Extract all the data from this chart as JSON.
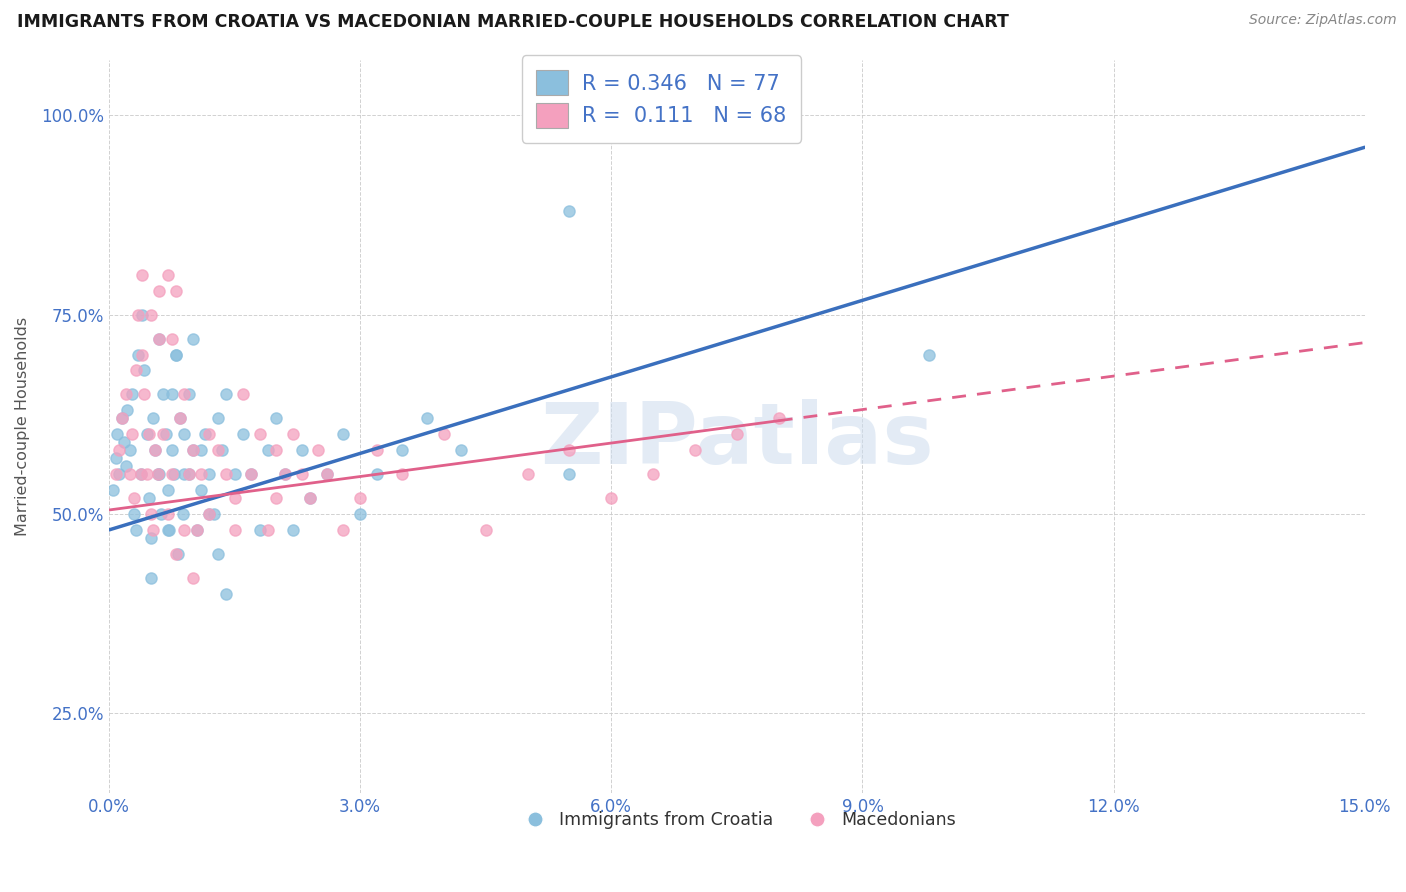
{
  "title": "IMMIGRANTS FROM CROATIA VS MACEDONIAN MARRIED-COUPLE HOUSEHOLDS CORRELATION CHART",
  "source": "Source: ZipAtlas.com",
  "ylabel": "Married-couple Households",
  "xlim": [
    0.0,
    15.0
  ],
  "ylim": [
    15.0,
    107.0
  ],
  "xticks": [
    0.0,
    3.0,
    6.0,
    9.0,
    12.0,
    15.0
  ],
  "yticks": [
    25.0,
    50.0,
    75.0,
    100.0
  ],
  "blue_scatter_color": "#8bbfdd",
  "pink_scatter_color": "#f4a0be",
  "blue_line_color": "#3a6fbd",
  "pink_line_color": "#e0608a",
  "R_blue": 0.346,
  "N_blue": 77,
  "R_pink": 0.111,
  "N_pink": 68,
  "legend_label_blue": "Immigrants from Croatia",
  "legend_label_pink": "Macedonians",
  "watermark": "ZIPatlas",
  "tick_color": "#4472c6",
  "label_color": "#555555",
  "grid_color": "#cccccc",
  "bg_color": "#ffffff",
  "title_color": "#1a1a1a",
  "source_color": "#888888",
  "blue_line_intercept": 48.0,
  "blue_line_slope": 3.2,
  "pink_line_intercept": 50.5,
  "pink_line_slope": 1.4,
  "pink_data_max_x": 8.0,
  "blue_scatter_x": [
    0.05,
    0.08,
    0.1,
    0.12,
    0.15,
    0.18,
    0.2,
    0.22,
    0.25,
    0.28,
    0.3,
    0.32,
    0.35,
    0.38,
    0.4,
    0.42,
    0.45,
    0.48,
    0.5,
    0.52,
    0.55,
    0.58,
    0.6,
    0.62,
    0.65,
    0.68,
    0.7,
    0.72,
    0.75,
    0.78,
    0.8,
    0.82,
    0.85,
    0.88,
    0.9,
    0.95,
    1.0,
    1.05,
    1.1,
    1.15,
    1.2,
    1.25,
    1.3,
    1.35,
    1.4,
    1.5,
    1.6,
    1.7,
    1.8,
    1.9,
    2.0,
    2.1,
    2.2,
    2.3,
    2.4,
    2.6,
    2.8,
    3.0,
    3.2,
    3.5,
    3.8,
    4.2,
    5.5,
    5.5,
    9.8,
    0.5,
    0.6,
    0.7,
    0.75,
    0.8,
    0.9,
    0.95,
    1.0,
    1.1,
    1.2,
    1.3,
    1.4
  ],
  "blue_scatter_y": [
    53,
    57,
    60,
    55,
    62,
    59,
    56,
    63,
    58,
    65,
    50,
    48,
    70,
    55,
    75,
    68,
    60,
    52,
    47,
    62,
    58,
    55,
    72,
    50,
    65,
    60,
    53,
    48,
    58,
    55,
    70,
    45,
    62,
    50,
    55,
    65,
    58,
    48,
    53,
    60,
    55,
    50,
    62,
    58,
    65,
    55,
    60,
    55,
    48,
    58,
    62,
    55,
    48,
    58,
    52,
    55,
    60,
    50,
    55,
    58,
    62,
    58,
    88,
    55,
    70,
    42,
    55,
    48,
    65,
    70,
    60,
    55,
    72,
    58,
    50,
    45,
    40
  ],
  "pink_scatter_x": [
    0.08,
    0.12,
    0.15,
    0.2,
    0.25,
    0.28,
    0.3,
    0.32,
    0.35,
    0.38,
    0.4,
    0.42,
    0.45,
    0.48,
    0.5,
    0.52,
    0.55,
    0.58,
    0.6,
    0.65,
    0.7,
    0.75,
    0.8,
    0.85,
    0.9,
    0.95,
    1.0,
    1.05,
    1.1,
    1.2,
    1.3,
    1.4,
    1.5,
    1.6,
    1.7,
    1.8,
    1.9,
    2.0,
    2.1,
    2.2,
    2.3,
    2.4,
    2.5,
    2.6,
    2.8,
    3.0,
    3.2,
    3.5,
    4.0,
    4.5,
    5.0,
    5.5,
    6.0,
    0.4,
    0.5,
    0.6,
    0.7,
    0.75,
    0.8,
    0.9,
    1.0,
    1.2,
    1.5,
    2.0,
    6.5,
    7.0,
    7.5,
    8.0
  ],
  "pink_scatter_y": [
    55,
    58,
    62,
    65,
    55,
    60,
    52,
    68,
    75,
    55,
    70,
    65,
    55,
    60,
    50,
    48,
    58,
    55,
    72,
    60,
    50,
    55,
    78,
    62,
    65,
    55,
    58,
    48,
    55,
    60,
    58,
    55,
    52,
    65,
    55,
    60,
    48,
    58,
    55,
    60,
    55,
    52,
    58,
    55,
    48,
    52,
    58,
    55,
    60,
    48,
    55,
    58,
    52,
    80,
    75,
    78,
    80,
    72,
    45,
    48,
    42,
    50,
    48,
    52,
    55,
    58,
    60,
    62
  ]
}
